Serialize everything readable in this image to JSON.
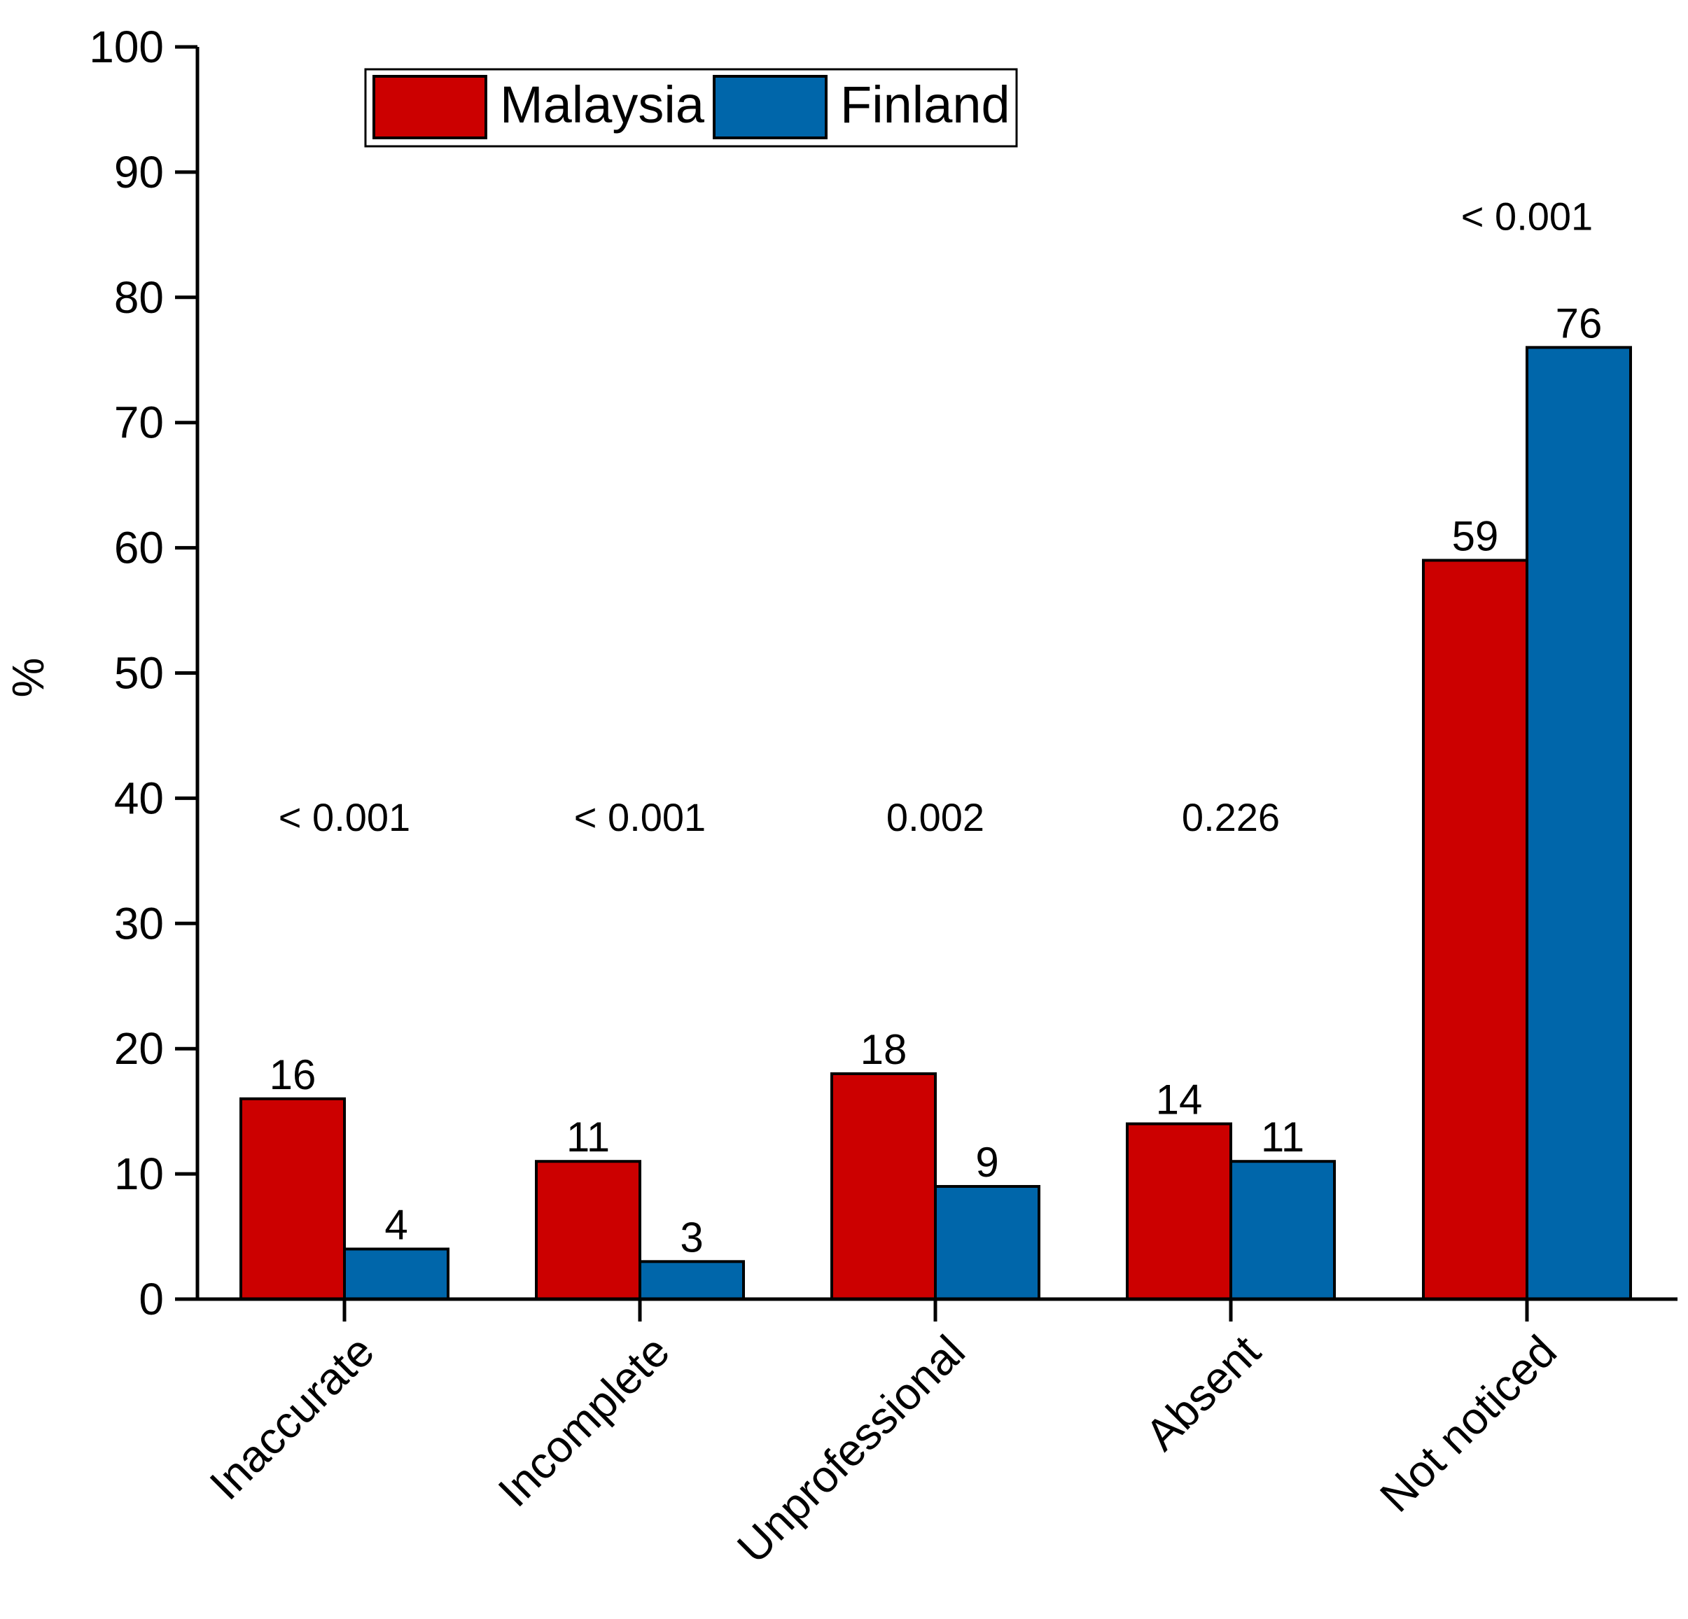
{
  "chart_data": {
    "type": "bar",
    "title": "",
    "xlabel": "",
    "ylabel": "%",
    "ylim": [
      0,
      100
    ],
    "yticks": [
      0,
      10,
      20,
      30,
      40,
      50,
      60,
      70,
      80,
      90,
      100
    ],
    "grid": false,
    "legend_position": "top-left",
    "categories": [
      "Inaccurate",
      "Incomplete",
      "Unprofessional",
      "Absent",
      "Not noticed"
    ],
    "series": [
      {
        "name": "Malaysia",
        "color": "#cc0000",
        "values": [
          16,
          11,
          18,
          14,
          59
        ],
        "labels": [
          "16",
          "11",
          "18",
          "14",
          "59"
        ]
      },
      {
        "name": "Finland",
        "color": "#0066aa",
        "values": [
          4,
          3,
          9,
          11,
          76
        ],
        "labels": [
          "4",
          "3",
          "9",
          "11",
          "76"
        ]
      }
    ],
    "annotations": [
      {
        "category": "Inaccurate",
        "text": "< 0.001",
        "y": 38.5
      },
      {
        "category": "Incomplete",
        "text": "< 0.001",
        "y": 38.5
      },
      {
        "category": "Unprofessional",
        "text": "0.002",
        "y": 38.5
      },
      {
        "category": "Absent",
        "text": "0.226",
        "y": 38.5
      },
      {
        "category": "Not noticed",
        "text": "< 0.001",
        "y": 86.5
      }
    ]
  }
}
